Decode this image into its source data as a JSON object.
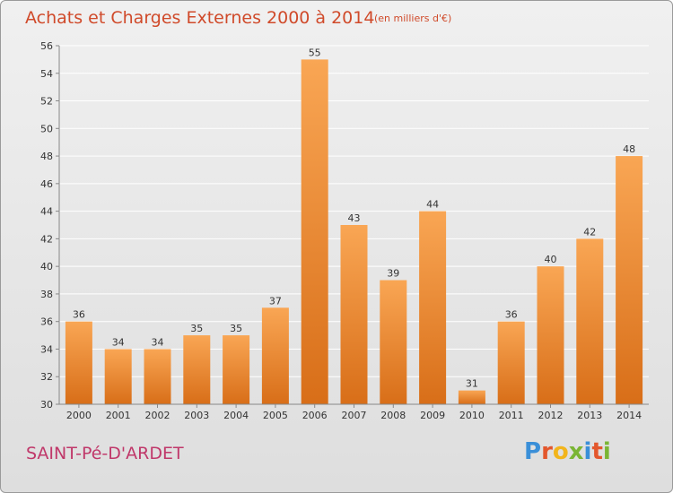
{
  "header": {
    "title": "Achats et Charges Externes 2000 à 2014",
    "subtitle": "(en milliers d'€)"
  },
  "footer": {
    "location": "SAINT-Pé-D'ARDET",
    "logo_text": "Proxiti",
    "logo_colors": [
      "#3a8fd8",
      "#e3572d",
      "#f2b51c",
      "#7ab534",
      "#3a8fd8",
      "#e3572d",
      "#7ab534"
    ]
  },
  "colors": {
    "bar_top": "#f9a654",
    "bar_bottom": "#d86e18",
    "grid": "#ffffff",
    "axis_text": "#333333"
  },
  "chart_data": {
    "type": "bar",
    "categories": [
      "2000",
      "2001",
      "2002",
      "2003",
      "2004",
      "2005",
      "2006",
      "2007",
      "2008",
      "2009",
      "2010",
      "2011",
      "2012",
      "2013",
      "2014"
    ],
    "values": [
      36,
      34,
      34,
      35,
      35,
      37,
      55,
      43,
      39,
      44,
      31,
      36,
      40,
      42,
      48
    ],
    "data_labels": [
      "36",
      "34",
      "34",
      "35",
      "35",
      "37",
      "55",
      "43",
      "39",
      "44",
      "31",
      "36",
      "40",
      "42",
      "48"
    ],
    "title": "Achats et Charges Externes 2000 à 2014",
    "ylim": [
      30,
      56
    ],
    "yticks": [
      30,
      32,
      34,
      36,
      38,
      40,
      42,
      44,
      46,
      48,
      50,
      52,
      54,
      56
    ],
    "ytick_labels": [
      "30",
      "32",
      "34",
      "36",
      "38",
      "40",
      "42",
      "44",
      "46",
      "48",
      "50",
      "52",
      "54",
      "56"
    ],
    "grid": true
  }
}
